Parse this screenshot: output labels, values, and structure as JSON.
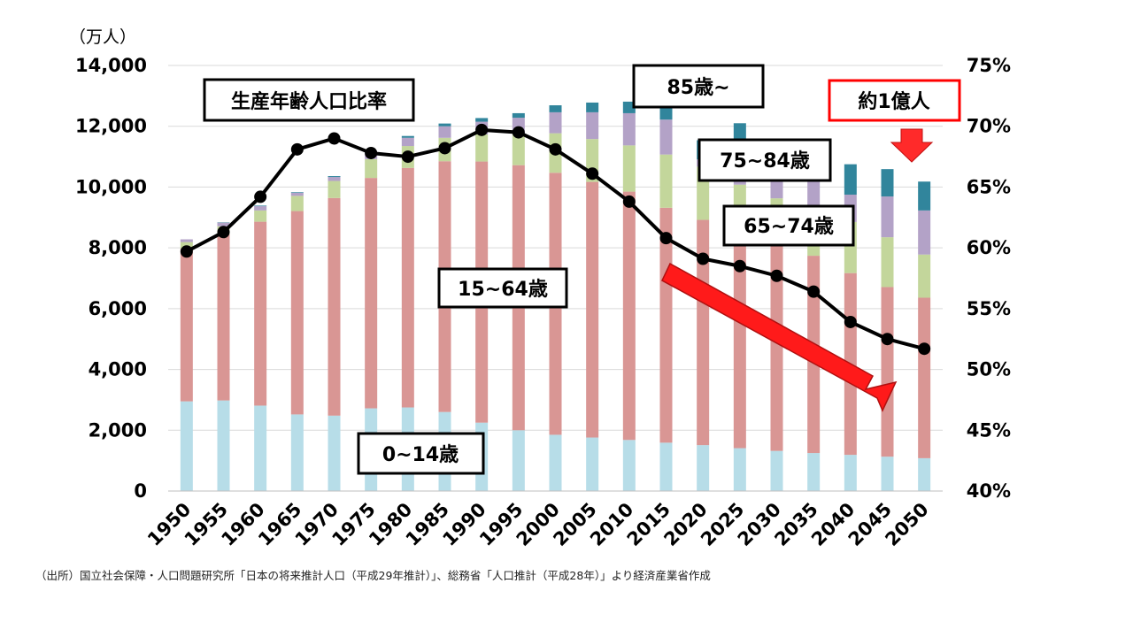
{
  "chart_data": {
    "type": "bar",
    "stacked": true,
    "ylabel_left": "（万人）",
    "ylim_left": [
      0,
      14000
    ],
    "ylim_right": [
      40,
      75
    ],
    "yticks_left": [
      "0",
      "2,000",
      "4,000",
      "6,000",
      "8,000",
      "10,000",
      "12,000",
      "14,000"
    ],
    "yticks_right": [
      "40%",
      "45%",
      "50%",
      "55%",
      "60%",
      "65%",
      "70%",
      "75%"
    ],
    "categories": [
      "1950",
      "1955",
      "1960",
      "1965",
      "1970",
      "1975",
      "1980",
      "1985",
      "1990",
      "1995",
      "2000",
      "2005",
      "2010",
      "2015",
      "2020",
      "2025",
      "2030",
      "2035",
      "2040",
      "2045",
      "2050"
    ],
    "series": [
      {
        "name": "0~14歳",
        "color": "#b7dde8",
        "values": [
          2950,
          2980,
          2810,
          2520,
          2480,
          2720,
          2750,
          2600,
          2250,
          2000,
          1850,
          1760,
          1680,
          1590,
          1510,
          1410,
          1320,
          1250,
          1190,
          1130,
          1080
        ]
      },
      {
        "name": "15~64歳",
        "color": "#d99694",
        "values": [
          5020,
          5470,
          6050,
          6690,
          7160,
          7580,
          7880,
          8250,
          8590,
          8720,
          8620,
          8410,
          8170,
          7730,
          7410,
          7170,
          6880,
          6490,
          5980,
          5580,
          5280
        ]
      },
      {
        "name": "65~74歳",
        "color": "#c3d69b",
        "values": [
          220,
          260,
          370,
          500,
          560,
          620,
          720,
          770,
          890,
          1020,
          1300,
          1410,
          1520,
          1750,
          1750,
          1500,
          1430,
          1500,
          1680,
          1640,
          1420
        ]
      },
      {
        "name": "75~84歳",
        "color": "#b3a2c7",
        "values": [
          90,
          120,
          140,
          100,
          130,
          180,
          270,
          380,
          420,
          540,
          690,
          880,
          1060,
          1150,
          240,
          1200,
          900,
          1350,
          900,
          1340,
          1450
        ]
      },
      {
        "name": "85歳~",
        "color": "#31859c",
        "values": [
          0,
          10,
          20,
          20,
          30,
          40,
          60,
          90,
          120,
          150,
          230,
          320,
          380,
          490,
          630,
          820,
          790,
          900,
          1000,
          900,
          950
        ]
      }
    ],
    "line": {
      "name": "生産年齢人口比率",
      "values": [
        59.7,
        61.3,
        64.2,
        68.1,
        69.0,
        67.8,
        67.5,
        68.2,
        69.7,
        69.5,
        68.1,
        66.1,
        63.8,
        60.8,
        59.1,
        58.5,
        57.7,
        56.4,
        53.9,
        52.5,
        51.7
      ]
    },
    "labels": {
      "ratio": "生産年齢人口比率",
      "age85": "85歳~",
      "age75": "75~84歳",
      "age65": "65~74歳",
      "age15": "15~64歳",
      "age0": "0~14歳",
      "total": "約1億人"
    },
    "source_note": "（出所）国立社会保障・人口問題研究所「日本の将来推計人口（平成29年推計）」、総務省「人口推計（平成28年）」より経済産業省作成"
  }
}
